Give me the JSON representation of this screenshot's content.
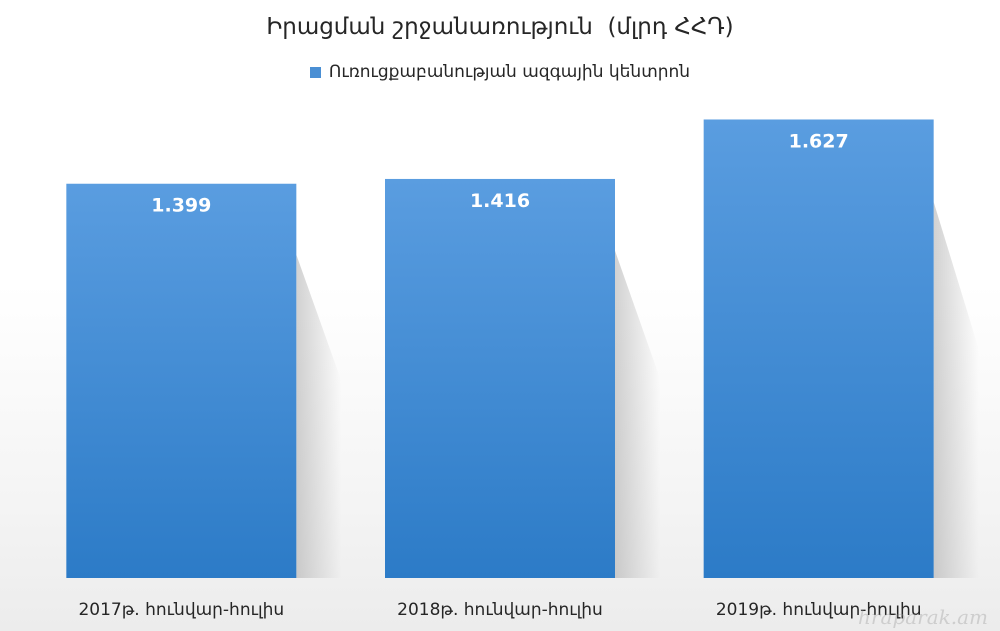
{
  "chart_data": {
    "type": "bar",
    "title": "Իրացման շրջանառություն  (մլրդ ՀՀԴ)",
    "categories": [
      "2017թ. հունվար-հուլիս",
      "2018թ. հունվար-հուլիս",
      "2019թ. հունվար-հուլիս"
    ],
    "series": [
      {
        "name": "Ուռուցքաբանության ազգային կենտրոն",
        "values": [
          1.399,
          1.416,
          1.627
        ],
        "data_labels": [
          "1.399",
          "1.416",
          "1.627"
        ]
      }
    ],
    "ylim": [
      0,
      1.65
    ],
    "grid": false,
    "legend_position": "top",
    "colors": {
      "bar_top": "#5a9de0",
      "bar_bottom": "#2c7bc7",
      "legend": "#4a8fd4",
      "label_text": "#ffffff",
      "axis_text": "#262626"
    }
  },
  "watermark": "hraparak.am"
}
